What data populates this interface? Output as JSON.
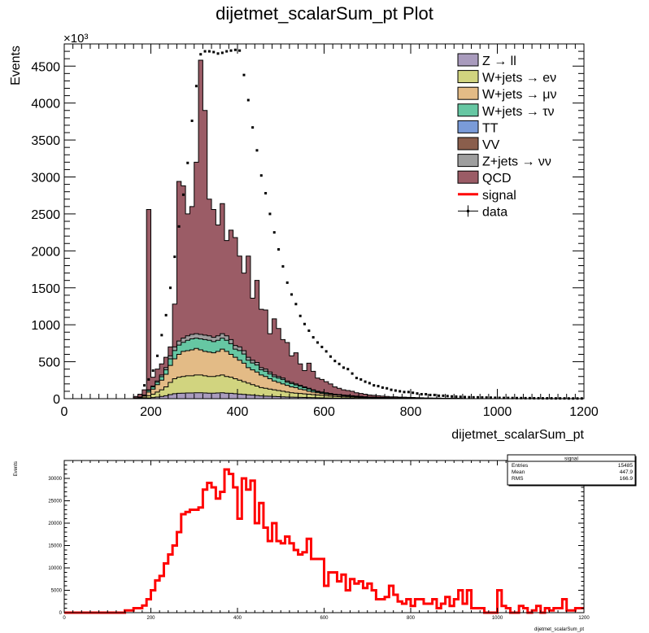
{
  "title": "dijetmet_scalarSum_pt Plot",
  "colors": {
    "Z_ll": "#a99bbd",
    "W_enu": "#d1d47f",
    "W_munu": "#e3bb86",
    "W_taunu": "#66c7a3",
    "TT": "#7a9bd8",
    "VV": "#8a5e4c",
    "Z_nunu": "#9e9e9e",
    "QCD": "#9b5c66",
    "signal": "#ff0000",
    "data": "#000000"
  },
  "chart_data": [
    {
      "type": "bar",
      "stacked": true,
      "title": "dijetmet_scalarSum_pt Plot",
      "xlabel": "dijetmet_scalarSum_pt",
      "ylabel": "Events",
      "y_multiplier": "×10³",
      "xlim": [
        0,
        1200
      ],
      "ylim": [
        0,
        4800
      ],
      "xticks": [
        "0",
        "200",
        "400",
        "600",
        "800",
        "1000",
        "1200"
      ],
      "yticks": [
        "0",
        "500",
        "1000",
        "1500",
        "2000",
        "2500",
        "3000",
        "3500",
        "4000",
        "4500"
      ],
      "legend_position": "top-right",
      "bin_width": 10,
      "bin_start": 160,
      "legend": [
        {
          "key": "Z_ll",
          "label": "Z → ll",
          "kind": "box"
        },
        {
          "key": "W_enu",
          "label": "W+jets → eν",
          "kind": "box"
        },
        {
          "key": "W_munu",
          "label": "W+jets → μν",
          "kind": "box"
        },
        {
          "key": "W_taunu",
          "label": "W+jets → τν",
          "kind": "box"
        },
        {
          "key": "TT",
          "label": "TT",
          "kind": "box"
        },
        {
          "key": "VV",
          "label": "VV",
          "kind": "box"
        },
        {
          "key": "Z_nunu",
          "label": "Z+jets → νν",
          "kind": "box"
        },
        {
          "key": "QCD",
          "label": "QCD",
          "kind": "box"
        },
        {
          "key": "signal",
          "label": "signal",
          "kind": "line"
        },
        {
          "key": "data",
          "label": "data",
          "kind": "marker"
        }
      ],
      "stack_top": [
        30,
        60,
        120,
        2560,
        290,
        400,
        470,
        560,
        700,
        1280,
        2940,
        2880,
        2500,
        2600,
        3200,
        4580,
        3900,
        2700,
        2560,
        2350,
        2640,
        2140,
        2280,
        2180,
        1930,
        1700,
        1930,
        1360,
        1600,
        1210,
        1200,
        880,
        1080,
        950,
        800,
        760,
        580,
        620,
        470,
        380,
        480,
        370,
        280,
        260,
        230,
        200,
        160,
        140,
        120,
        110,
        100,
        80,
        70,
        60,
        50,
        45,
        40,
        35,
        30,
        25,
        25,
        20,
        20,
        18,
        16,
        14,
        12,
        10,
        10,
        8,
        8,
        6,
        6,
        5,
        5,
        4
      ],
      "bkg_top": [
        10,
        20,
        50,
        120,
        170,
        240,
        320,
        420,
        580,
        700,
        780,
        820,
        850,
        870,
        880,
        870,
        860,
        850,
        830,
        850,
        880,
        850,
        800,
        720,
        700,
        650,
        560,
        520,
        490,
        420,
        400,
        360,
        320,
        300,
        280,
        240,
        220,
        200,
        180,
        160,
        140,
        120,
        100,
        90,
        80,
        70,
        60,
        55,
        50,
        45,
        40,
        35,
        30,
        25,
        22,
        20,
        18,
        16,
        14,
        12,
        10,
        9,
        8,
        7,
        6,
        5,
        5,
        4,
        4,
        3,
        3,
        3,
        2,
        2,
        2,
        2
      ],
      "wmunu_top": [
        8,
        15,
        40,
        90,
        130,
        190,
        250,
        330,
        450,
        540,
        600,
        640,
        650,
        660,
        680,
        660,
        640,
        630,
        620,
        640,
        670,
        640,
        600,
        560,
        520,
        480,
        420,
        390,
        360,
        320,
        300,
        270,
        240,
        220,
        200,
        180,
        160,
        150,
        130,
        120,
        100,
        90,
        80,
        70,
        60,
        55,
        50,
        45,
        40,
        35,
        30,
        28,
        25,
        22,
        20,
        18,
        16,
        14,
        12,
        10,
        9,
        8,
        7,
        6,
        5,
        5,
        4,
        4,
        3,
        3,
        3,
        2,
        2,
        2,
        2,
        2
      ],
      "wenu_top": [
        4,
        8,
        20,
        40,
        60,
        90,
        120,
        160,
        220,
        270,
        290,
        300,
        310,
        310,
        320,
        320,
        310,
        300,
        300,
        310,
        320,
        300,
        290,
        270,
        250,
        230,
        210,
        190,
        170,
        150,
        140,
        130,
        120,
        110,
        100,
        90,
        80,
        75,
        70,
        65,
        60,
        55,
        50,
        45,
        40,
        35,
        30,
        28,
        25,
        22,
        20,
        18,
        16,
        14,
        12,
        10,
        9,
        8,
        7,
        6,
        5,
        5,
        4,
        4,
        3,
        3,
        3,
        2,
        2,
        2,
        2,
        2,
        1,
        1,
        1,
        1
      ],
      "data_x": [
        185,
        195,
        205,
        215,
        225,
        235,
        245,
        255,
        265,
        275,
        285,
        295,
        305,
        315,
        325,
        335,
        345,
        355,
        365,
        375,
        385,
        395,
        405,
        415,
        425,
        435,
        445,
        455,
        465,
        475,
        485,
        495,
        505,
        515,
        525,
        535,
        545,
        555,
        565,
        575,
        585,
        595,
        605,
        615,
        625,
        635,
        645,
        655,
        665,
        675,
        685,
        695,
        705,
        715,
        725,
        735,
        745,
        755,
        765,
        775,
        785,
        795,
        805,
        815,
        825,
        835,
        845,
        855,
        865,
        875,
        885,
        895,
        905,
        915,
        925,
        935,
        945,
        955,
        965,
        975,
        985,
        995,
        1005,
        1015,
        1025,
        1035,
        1045,
        1055,
        1065,
        1075,
        1085,
        1095,
        1105,
        1115,
        1125,
        1135,
        1145,
        1155,
        1165,
        1175,
        1185,
        1195
      ],
      "data_y": [
        180,
        260,
        380,
        580,
        860,
        1130,
        1500,
        1920,
        2330,
        2760,
        3190,
        3760,
        4230,
        4660,
        4700,
        4700,
        4690,
        4670,
        4680,
        4700,
        4710,
        4720,
        4710,
        4380,
        4040,
        3670,
        3360,
        3020,
        2780,
        2500,
        2250,
        2020,
        1790,
        1570,
        1410,
        1280,
        1120,
        1010,
        920,
        830,
        760,
        700,
        640,
        570,
        510,
        470,
        420,
        400,
        340,
        280,
        260,
        230,
        210,
        180,
        170,
        150,
        140,
        120,
        110,
        100,
        90,
        90,
        80,
        70,
        60,
        60,
        50,
        50,
        40,
        40,
        35,
        30,
        28,
        25,
        22,
        20,
        18,
        18,
        16,
        15,
        14,
        12,
        11,
        10,
        10,
        9,
        8,
        8,
        7,
        7,
        6,
        6,
        5,
        5,
        5,
        4,
        4,
        4,
        3,
        3,
        3,
        3
      ]
    },
    {
      "type": "line",
      "xlabel": "dijetmet_scalarSum_pt",
      "ylabel": "Events",
      "xlim": [
        0,
        1200
      ],
      "ylim": [
        0,
        34000
      ],
      "xticks": [
        "0",
        "200",
        "400",
        "600",
        "800",
        "1000",
        "1200"
      ],
      "yticks": [
        "0",
        "5000",
        "10000",
        "15000",
        "20000",
        "25000",
        "30000"
      ],
      "stats": {
        "name": "signal",
        "rows": [
          {
            "label": "Entries",
            "value": "15485"
          },
          {
            "label": "Mean",
            "value": "447.9"
          },
          {
            "label": "RMS",
            "value": "166.9"
          }
        ]
      },
      "bin_width": 10,
      "values": [
        0,
        0,
        0,
        0,
        0,
        0,
        0,
        0,
        0,
        0,
        0,
        0,
        0,
        0,
        500,
        500,
        1000,
        1000,
        1600,
        3000,
        5000,
        7200,
        8200,
        11000,
        13000,
        15000,
        18000,
        22000,
        22500,
        23000,
        23000,
        23500,
        27500,
        29000,
        28000,
        25500,
        27000,
        32000,
        31000,
        28000,
        21000,
        30000,
        27500,
        29500,
        20000,
        24500,
        19000,
        16000,
        20000,
        16000,
        15500,
        17000,
        15500,
        14000,
        13000,
        13500,
        16500,
        12000,
        12000,
        12000,
        6000,
        9000,
        9000,
        7000,
        8500,
        5000,
        7500,
        6500,
        7000,
        5500,
        6500,
        5000,
        3000,
        3000,
        3500,
        6000,
        4000,
        2500,
        2000,
        3000,
        1500,
        3000,
        3000,
        2000,
        2000,
        3000,
        1000,
        2000,
        3500,
        1500,
        3000,
        5000,
        2000,
        5000,
        1000,
        1000,
        1000,
        0,
        0,
        0,
        5000,
        1500,
        1000,
        0,
        0,
        1500,
        1000,
        0,
        500,
        1500,
        0,
        1000,
        500,
        1000,
        1000,
        3000,
        500,
        500,
        1000,
        1000
      ]
    }
  ]
}
